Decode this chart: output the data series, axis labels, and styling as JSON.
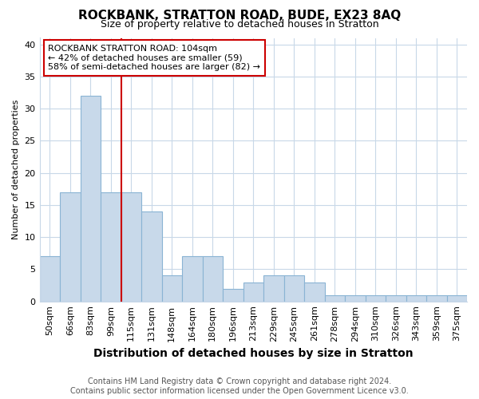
{
  "title": "ROCKBANK, STRATTON ROAD, BUDE, EX23 8AQ",
  "subtitle": "Size of property relative to detached houses in Stratton",
  "xlabel": "Distribution of detached houses by size in Stratton",
  "ylabel": "Number of detached properties",
  "categories": [
    "50sqm",
    "66sqm",
    "83sqm",
    "99sqm",
    "115sqm",
    "131sqm",
    "148sqm",
    "164sqm",
    "180sqm",
    "196sqm",
    "213sqm",
    "229sqm",
    "245sqm",
    "261sqm",
    "278sqm",
    "294sqm",
    "310sqm",
    "326sqm",
    "343sqm",
    "359sqm",
    "375sqm"
  ],
  "values": [
    7,
    17,
    32,
    17,
    17,
    14,
    4,
    7,
    7,
    2,
    3,
    4,
    4,
    3,
    1,
    1,
    1,
    1,
    1,
    1,
    1
  ],
  "bar_color": "#c8d9ea",
  "bar_edge_color": "#8ab4d4",
  "red_line_index": 3,
  "red_line_color": "#cc0000",
  "annotation_title": "ROCKBANK STRATTON ROAD: 104sqm",
  "annotation_line1": "← 42% of detached houses are smaller (59)",
  "annotation_line2": "58% of semi-detached houses are larger (82) →",
  "annotation_box_facecolor": "#ffffff",
  "annotation_box_edgecolor": "#cc0000",
  "ylim": [
    0,
    41
  ],
  "yticks": [
    0,
    5,
    10,
    15,
    20,
    25,
    30,
    35,
    40
  ],
  "background_color": "#ffffff",
  "plot_bg_color": "#ffffff",
  "grid_color": "#c8d8e8",
  "footer_line1": "Contains HM Land Registry data © Crown copyright and database right 2024.",
  "footer_line2": "Contains public sector information licensed under the Open Government Licence v3.0.",
  "title_fontsize": 11,
  "subtitle_fontsize": 9,
  "xlabel_fontsize": 10,
  "ylabel_fontsize": 8,
  "tick_fontsize": 8,
  "annotation_fontsize": 8,
  "footer_fontsize": 7
}
